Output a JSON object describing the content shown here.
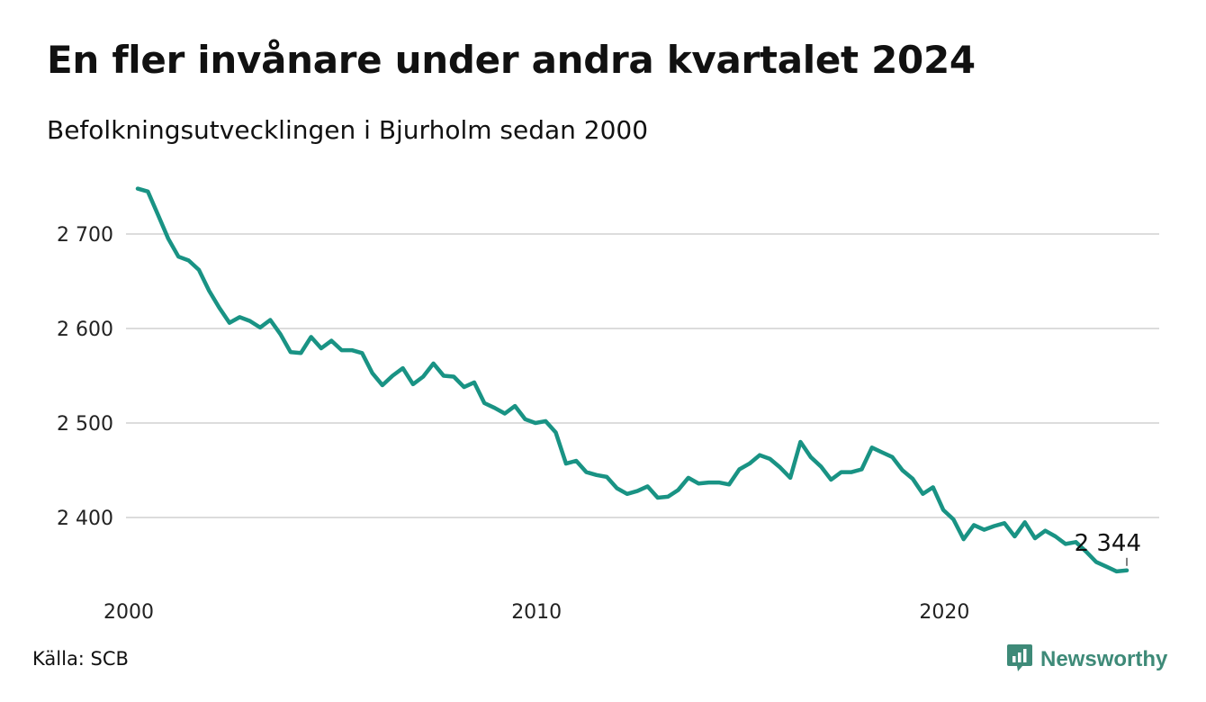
{
  "title": "En fler invånare under andra kvartalet 2024",
  "subtitle": "Befolkningsutvecklingen i Bjurholm sedan 2000",
  "source": "Källa: SCB",
  "brand": {
    "name": "Newsworthy",
    "icon": "newsworthy-logo-icon",
    "color": "#3e8a78"
  },
  "colors": {
    "line": "#199384",
    "grid": "#dcdcdc",
    "text": "#111111"
  },
  "chart_data": {
    "type": "line",
    "title": "En fler invånare under andra kvartalet 2024",
    "subtitle": "Befolkningsutvecklingen i Bjurholm sedan 2000",
    "xlabel": "",
    "ylabel": "",
    "xlim": [
      2000.0,
      2024.25
    ],
    "ylim": [
      2330,
      2750
    ],
    "grid": true,
    "y_ticks": [
      {
        "value": 2400,
        "label": "2 400"
      },
      {
        "value": 2500,
        "label": "2 500"
      },
      {
        "value": 2600,
        "label": "2 600"
      },
      {
        "value": 2700,
        "label": "2 700"
      }
    ],
    "x_ticks": [
      {
        "value": 2000,
        "label": "2000"
      },
      {
        "value": 2010,
        "label": "2010"
      },
      {
        "value": 2020,
        "label": "2020"
      }
    ],
    "end_label": {
      "value": 2344,
      "label": "2 344"
    },
    "series": [
      {
        "x": [
          2000.0,
          2000.25,
          2000.5,
          2000.75,
          2001.0,
          2001.25,
          2001.5,
          2001.75,
          2002.0,
          2002.25,
          2002.5,
          2002.75,
          2003.0,
          2003.25,
          2003.5,
          2003.75,
          2004.0,
          2004.25,
          2004.5,
          2004.75,
          2005.0,
          2005.25,
          2005.5,
          2005.75,
          2006.0,
          2006.25,
          2006.5,
          2006.75,
          2007.0,
          2007.25,
          2007.5,
          2007.75,
          2008.0,
          2008.25,
          2008.5,
          2008.75,
          2009.0,
          2009.25,
          2009.5,
          2009.75,
          2010.0,
          2010.25,
          2010.5,
          2010.75,
          2011.0,
          2011.25,
          2011.5,
          2011.75,
          2012.0,
          2012.25,
          2012.5,
          2012.75,
          2013.0,
          2013.25,
          2013.5,
          2013.75,
          2014.0,
          2014.25,
          2014.5,
          2014.75,
          2015.0,
          2015.25,
          2015.5,
          2015.75,
          2016.0,
          2016.25,
          2016.5,
          2016.75,
          2017.0,
          2017.25,
          2017.5,
          2017.75,
          2018.0,
          2018.25,
          2018.5,
          2018.75,
          2019.0,
          2019.25,
          2019.5,
          2019.75,
          2020.0,
          2020.25,
          2020.5,
          2020.75,
          2021.0,
          2021.25,
          2021.5,
          2021.75,
          2022.0,
          2022.25,
          2022.5,
          2022.75,
          2023.0,
          2023.25,
          2023.5,
          2023.75,
          2024.0,
          2024.25
        ],
        "values": [
          2748,
          2745,
          2720,
          2695,
          2676,
          2672,
          2662,
          2640,
          2622,
          2606,
          2612,
          2608,
          2601,
          2609,
          2594,
          2575,
          2574,
          2591,
          2579,
          2587,
          2577,
          2577,
          2574,
          2553,
          2540,
          2550,
          2558,
          2541,
          2549,
          2563,
          2550,
          2549,
          2538,
          2543,
          2521,
          2516,
          2510,
          2518,
          2504,
          2500,
          2502,
          2490,
          2457,
          2460,
          2448,
          2445,
          2443,
          2431,
          2425,
          2428,
          2433,
          2421,
          2422,
          2429,
          2442,
          2436,
          2437,
          2437,
          2435,
          2451,
          2457,
          2466,
          2462,
          2453,
          2442,
          2480,
          2464,
          2454,
          2440,
          2448,
          2448,
          2451,
          2474,
          2469,
          2464,
          2450,
          2441,
          2425,
          2432,
          2408,
          2398,
          2377,
          2392,
          2387,
          2391,
          2394,
          2380,
          2395,
          2378,
          2386,
          2380,
          2372,
          2374,
          2364,
          2353,
          2348,
          2343,
          2344
        ]
      }
    ]
  }
}
